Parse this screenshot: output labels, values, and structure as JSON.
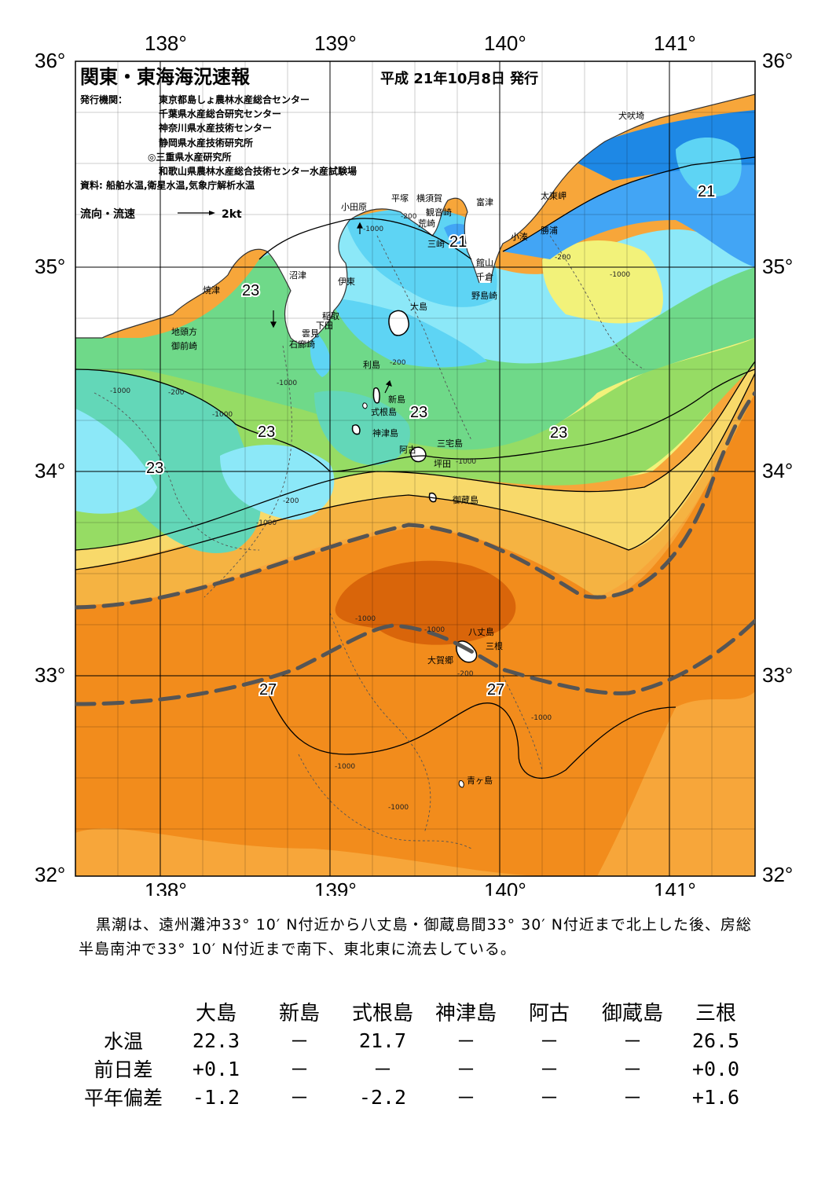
{
  "header": {
    "title": "関東・東海海況速報",
    "date": "平成 21年10月8日 発行",
    "publisher_label": "発行機関：",
    "publishers": [
      "東京都島しょ農林水産総合センター",
      "千葉県水産総合研究センター",
      "神奈川県水産技術センター",
      "静岡県水産技術研究所",
      "◎三重県水産研究所",
      "和歌山県農林水産総合技術センター水産試験場"
    ],
    "source": "資料: 船舶水温,衛星水温,気象庁解析水温",
    "current_legend_label": "流向・流速",
    "current_legend_value": "2kt"
  },
  "axes": {
    "lon_ticks": [
      "138°",
      "139°",
      "140°",
      "141°"
    ],
    "lat_ticks": [
      "36°",
      "35°",
      "34°",
      "33°",
      "32°"
    ]
  },
  "places": [
    {
      "id": "inubozaki",
      "text": "犬吠埼"
    },
    {
      "id": "taitozaki",
      "text": "太東岬"
    },
    {
      "id": "katsuura",
      "text": "勝浦"
    },
    {
      "id": "kominato",
      "text": "小湊"
    },
    {
      "id": "tomitsu",
      "text": "富津"
    },
    {
      "id": "tateyama",
      "text": "館山"
    },
    {
      "id": "chikura",
      "text": "千倉"
    },
    {
      "id": "nojimazaki",
      "text": "野島崎"
    },
    {
      "id": "yokosuka",
      "text": "横須賀"
    },
    {
      "id": "kannonzaki",
      "text": "観音崎"
    },
    {
      "id": "arasaki",
      "text": "荒崎"
    },
    {
      "id": "misaki",
      "text": "三崎"
    },
    {
      "id": "hiratsuka",
      "text": "平塚"
    },
    {
      "id": "odawara",
      "text": "小田原"
    },
    {
      "id": "numazu",
      "text": "沼津"
    },
    {
      "id": "ito",
      "text": "伊東"
    },
    {
      "id": "inatori",
      "text": "稲取"
    },
    {
      "id": "shimoda",
      "text": "下田"
    },
    {
      "id": "kumomi",
      "text": "雲見"
    },
    {
      "id": "irouzaki",
      "text": "石廊崎"
    },
    {
      "id": "yaizu",
      "text": "焼津"
    },
    {
      "id": "jitokata",
      "text": "地頭方"
    },
    {
      "id": "omaezaki",
      "text": "御前崎"
    },
    {
      "id": "oshima",
      "text": "大島"
    },
    {
      "id": "toshima",
      "text": "利島"
    },
    {
      "id": "niijima",
      "text": "新島"
    },
    {
      "id": "shikinejima",
      "text": "式根島"
    },
    {
      "id": "kozushima",
      "text": "神津島"
    },
    {
      "id": "miyakejima",
      "text": "三宅島"
    },
    {
      "id": "ako",
      "text": "阿古"
    },
    {
      "id": "tsubota",
      "text": "坪田"
    },
    {
      "id": "mikurajima",
      "text": "御蔵島"
    },
    {
      "id": "hachijojima",
      "text": "八丈島"
    },
    {
      "id": "mitsune",
      "text": "三根"
    },
    {
      "id": "okago",
      "text": "大賀郷"
    },
    {
      "id": "aogashima",
      "text": "青ヶ島"
    }
  ],
  "isotherm_labels": [
    {
      "id": "t21a",
      "text": "21"
    },
    {
      "id": "t21b",
      "text": "21"
    },
    {
      "id": "t23a",
      "text": "23"
    },
    {
      "id": "t23b",
      "text": "23"
    },
    {
      "id": "t23c",
      "text": "23"
    },
    {
      "id": "t23d",
      "text": "23"
    },
    {
      "id": "t23e",
      "text": "23"
    },
    {
      "id": "t27a",
      "text": "27"
    },
    {
      "id": "t27b",
      "text": "27"
    }
  ],
  "depth_labels": [
    "-200",
    "-1000"
  ],
  "colors": {
    "kuroshio_axis": "#555555",
    "t20": "#1e88e5",
    "t21": "#42a5f5",
    "t22": "#5ed4f4",
    "t22b": "#8ce8f8",
    "t23": "#63d7b8",
    "t23b": "#6fd989",
    "t24": "#96dc64",
    "t25": "#f2f27a",
    "t25b": "#f8d96a",
    "t26": "#f5b342",
    "t27": "#f28c1c",
    "t28": "#d9650a",
    "t27s": "#f7a63a"
  },
  "summary": "黒潮は、遠州灘沖33° 10′ N付近から八丈島・御蔵島間33° 30′ N付近まで北上した後、房総半島南沖で33° 10′ N付近まで南下、東北東に流去している。",
  "stats": {
    "columns": [
      "大島",
      "新島",
      "式根島",
      "神津島",
      "阿古",
      "御蔵島",
      "三根"
    ],
    "rows": [
      {
        "label": "水温",
        "values": [
          "22.3",
          "－",
          "21.7",
          "－",
          "－",
          "－",
          "26.5"
        ]
      },
      {
        "label": "前日差",
        "values": [
          "+0.1",
          "－",
          "－",
          "－",
          "－",
          "－",
          "+0.0"
        ]
      },
      {
        "label": "平年偏差",
        "values": [
          "-1.2",
          "－",
          "-2.2",
          "－",
          "－",
          "－",
          "+1.6"
        ]
      }
    ]
  }
}
